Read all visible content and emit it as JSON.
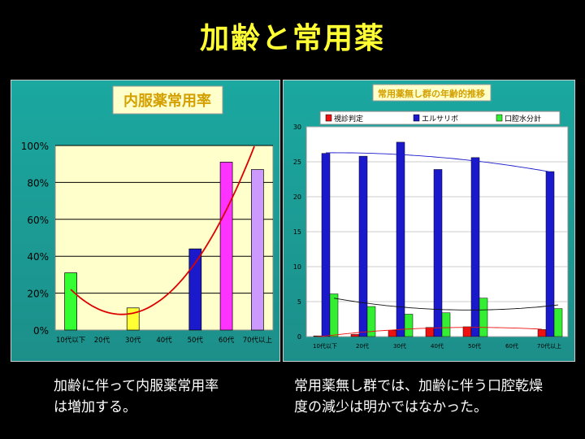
{
  "slide": {
    "title": "加齢と常用薬",
    "left_caption_line1": "加齢に伴って内服薬常用率",
    "left_caption_line2": "は増加する。",
    "right_caption_line1": "常用薬無し群では、加齢に伴う口腔乾燥",
    "right_caption_line2": "度の減少は明かではなかった。"
  },
  "chart_data": [
    {
      "type": "bar",
      "title": "内服薬常用率",
      "categories": [
        "10代以下",
        "20代",
        "30代",
        "40代",
        "50代",
        "60代",
        "70代以上"
      ],
      "values": [
        31,
        0,
        12,
        0,
        44,
        91,
        87
      ],
      "bar_colors": [
        "#33ff33",
        "#33ff33",
        "#ffff33",
        "#ffff33",
        "#1a1acc",
        "#ff33ff",
        "#cc99ff"
      ],
      "ylim": [
        0,
        100
      ],
      "yticks": [
        "0%",
        "20%",
        "40%",
        "60%",
        "80%",
        "100%"
      ],
      "trendline": "polynomial",
      "trend_color": "#dd0000",
      "grid": true,
      "plot_bg": "#ffffcc"
    },
    {
      "type": "bar",
      "title": "常用薬無し群の年齢的推移",
      "categories": [
        "10代以下",
        "20代",
        "30代",
        "40代",
        "50代",
        "60代",
        "70代以上"
      ],
      "series": [
        {
          "name": "視診判定",
          "color": "#ee1111",
          "values": [
            0.1,
            0.3,
            0.9,
            1.3,
            1.4,
            0,
            1.0
          ]
        },
        {
          "name": "エルサリボ",
          "color": "#1a1acc",
          "values": [
            26.2,
            25.8,
            27.8,
            23.9,
            25.6,
            0,
            23.6
          ]
        },
        {
          "name": "口腔水分計",
          "color": "#33ee33",
          "values": [
            6.1,
            4.3,
            3.2,
            3.4,
            5.5,
            0,
            4.0
          ]
        }
      ],
      "ylim": [
        0,
        30
      ],
      "yticks": [
        "0",
        "5",
        "10",
        "15",
        "20",
        "25",
        "30"
      ],
      "legend": "top",
      "trendlines": true,
      "grid": true,
      "plot_bg": "#ffffff"
    }
  ]
}
